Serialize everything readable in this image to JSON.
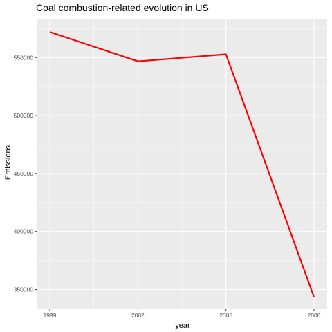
{
  "chart_data": {
    "type": "line",
    "title": "Coal combustion-related evolution in US",
    "xlabel": "year",
    "ylabel": "Emissions",
    "x": [
      1999,
      2002,
      2005,
      2008
    ],
    "series": [
      {
        "values": [
          572126,
          546789,
          552881,
          343432
        ]
      }
    ],
    "xlim": [
      1999,
      2008
    ],
    "ylim": [
      333000,
      583000
    ],
    "x_ticks": [
      1999,
      2002,
      2005,
      2008
    ],
    "x_tick_labels": [
      "1999",
      "2002",
      "2005",
      "2008"
    ],
    "y_ticks": [
      350000,
      400000,
      450000,
      500000,
      550000
    ],
    "y_tick_labels": [
      "350000",
      "400000",
      "450000",
      "500000",
      "550000"
    ],
    "grid": true,
    "colors": {
      "panel_background": "#ebebeb",
      "grid_major": "#ffffff",
      "line": "#ff0000",
      "tick_label": "#4d4d4d",
      "tick_mark": "#333333"
    }
  }
}
